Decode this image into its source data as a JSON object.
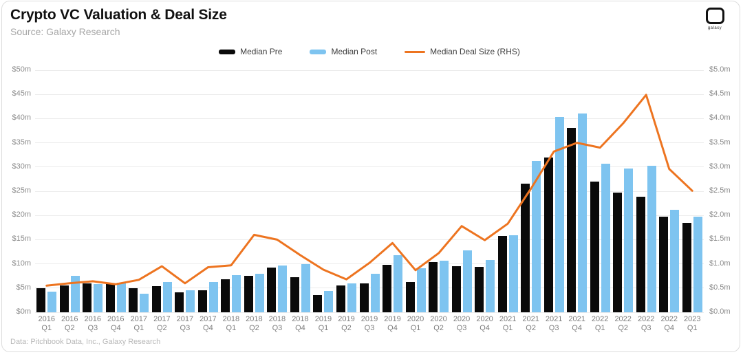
{
  "header": {
    "title": "Crypto VC Valuation & Deal Size",
    "source": "Source: Galaxy Research",
    "logo_text": "galaxy"
  },
  "footer": {
    "credit": "Data: Pitchbook Data, Inc., Galaxy Research"
  },
  "colors": {
    "median_pre": "#0a0a0a",
    "median_post": "#7ec4f0",
    "deal_size_line": "#ed7420",
    "grid": "#ececec",
    "axis_text": "#8c8c8c"
  },
  "chart_data": {
    "type": "bar",
    "title": "Crypto VC Valuation & Deal Size",
    "grid": true,
    "legend_position": "top",
    "categories": [
      "2016 Q1",
      "2016 Q2",
      "2016 Q3",
      "2016 Q4",
      "2017 Q1",
      "2017 Q2",
      "2017 Q3",
      "2017 Q4",
      "2018 Q1",
      "2018 Q2",
      "2018 Q3",
      "2018 Q4",
      "2019 Q1",
      "2019 Q2",
      "2019 Q3",
      "2019 Q4",
      "2020 Q1",
      "2020 Q2",
      "2020 Q3",
      "2020 Q4",
      "2021 Q1",
      "2021 Q2",
      "2021 Q3",
      "2021 Q4",
      "2022 Q1",
      "2022 Q2",
      "2022 Q3",
      "2022 Q4",
      "2023 Q1"
    ],
    "series": [
      {
        "name": "Median Pre",
        "type": "bar",
        "axis": "left",
        "color": "#0a0a0a",
        "values": [
          5.0,
          5.5,
          5.9,
          6.0,
          5.0,
          5.4,
          4.1,
          4.6,
          6.8,
          7.5,
          9.3,
          7.3,
          3.6,
          5.6,
          5.9,
          9.8,
          6.3,
          10.4,
          9.5,
          9.4,
          15.8,
          26.5,
          32.0,
          38.0,
          27.0,
          24.7,
          23.9,
          19.8,
          18.5
        ]
      },
      {
        "name": "Median Post",
        "type": "bar",
        "axis": "left",
        "color": "#7ec4f0",
        "values": [
          4.3,
          7.6,
          5.8,
          6.1,
          3.8,
          6.3,
          4.6,
          6.3,
          7.7,
          7.9,
          9.6,
          9.9,
          4.4,
          6.0,
          7.9,
          11.8,
          9.1,
          10.6,
          12.8,
          10.8,
          15.9,
          31.3,
          40.3,
          41.0,
          30.7,
          29.7,
          30.2,
          21.2,
          19.8
        ]
      },
      {
        "name": "Median Deal Size (RHS)",
        "type": "line",
        "axis": "right",
        "color": "#ed7420",
        "values": [
          0.55,
          0.6,
          0.64,
          0.58,
          0.67,
          0.95,
          0.6,
          0.93,
          0.97,
          1.6,
          1.5,
          1.18,
          0.88,
          0.68,
          1.02,
          1.43,
          0.87,
          1.22,
          1.78,
          1.49,
          1.83,
          2.55,
          3.32,
          3.5,
          3.4,
          3.9,
          4.49,
          2.96,
          2.51
        ]
      }
    ],
    "left_axis": {
      "min": 0,
      "max": 50,
      "step": 5,
      "ticks": [
        "$0m",
        "$5m",
        "$10m",
        "$15m",
        "$20m",
        "$25m",
        "$30m",
        "$35m",
        "$40m",
        "$45m",
        "$50m"
      ]
    },
    "right_axis": {
      "min": 0,
      "max": 5,
      "step": 0.5,
      "ticks": [
        "$0.0m",
        "$0.5m",
        "$1.0m",
        "$1.5m",
        "$2.0m",
        "$2.5m",
        "$3.0m",
        "$3.5m",
        "$4.0m",
        "$4.5m",
        "$5.0m"
      ]
    }
  }
}
